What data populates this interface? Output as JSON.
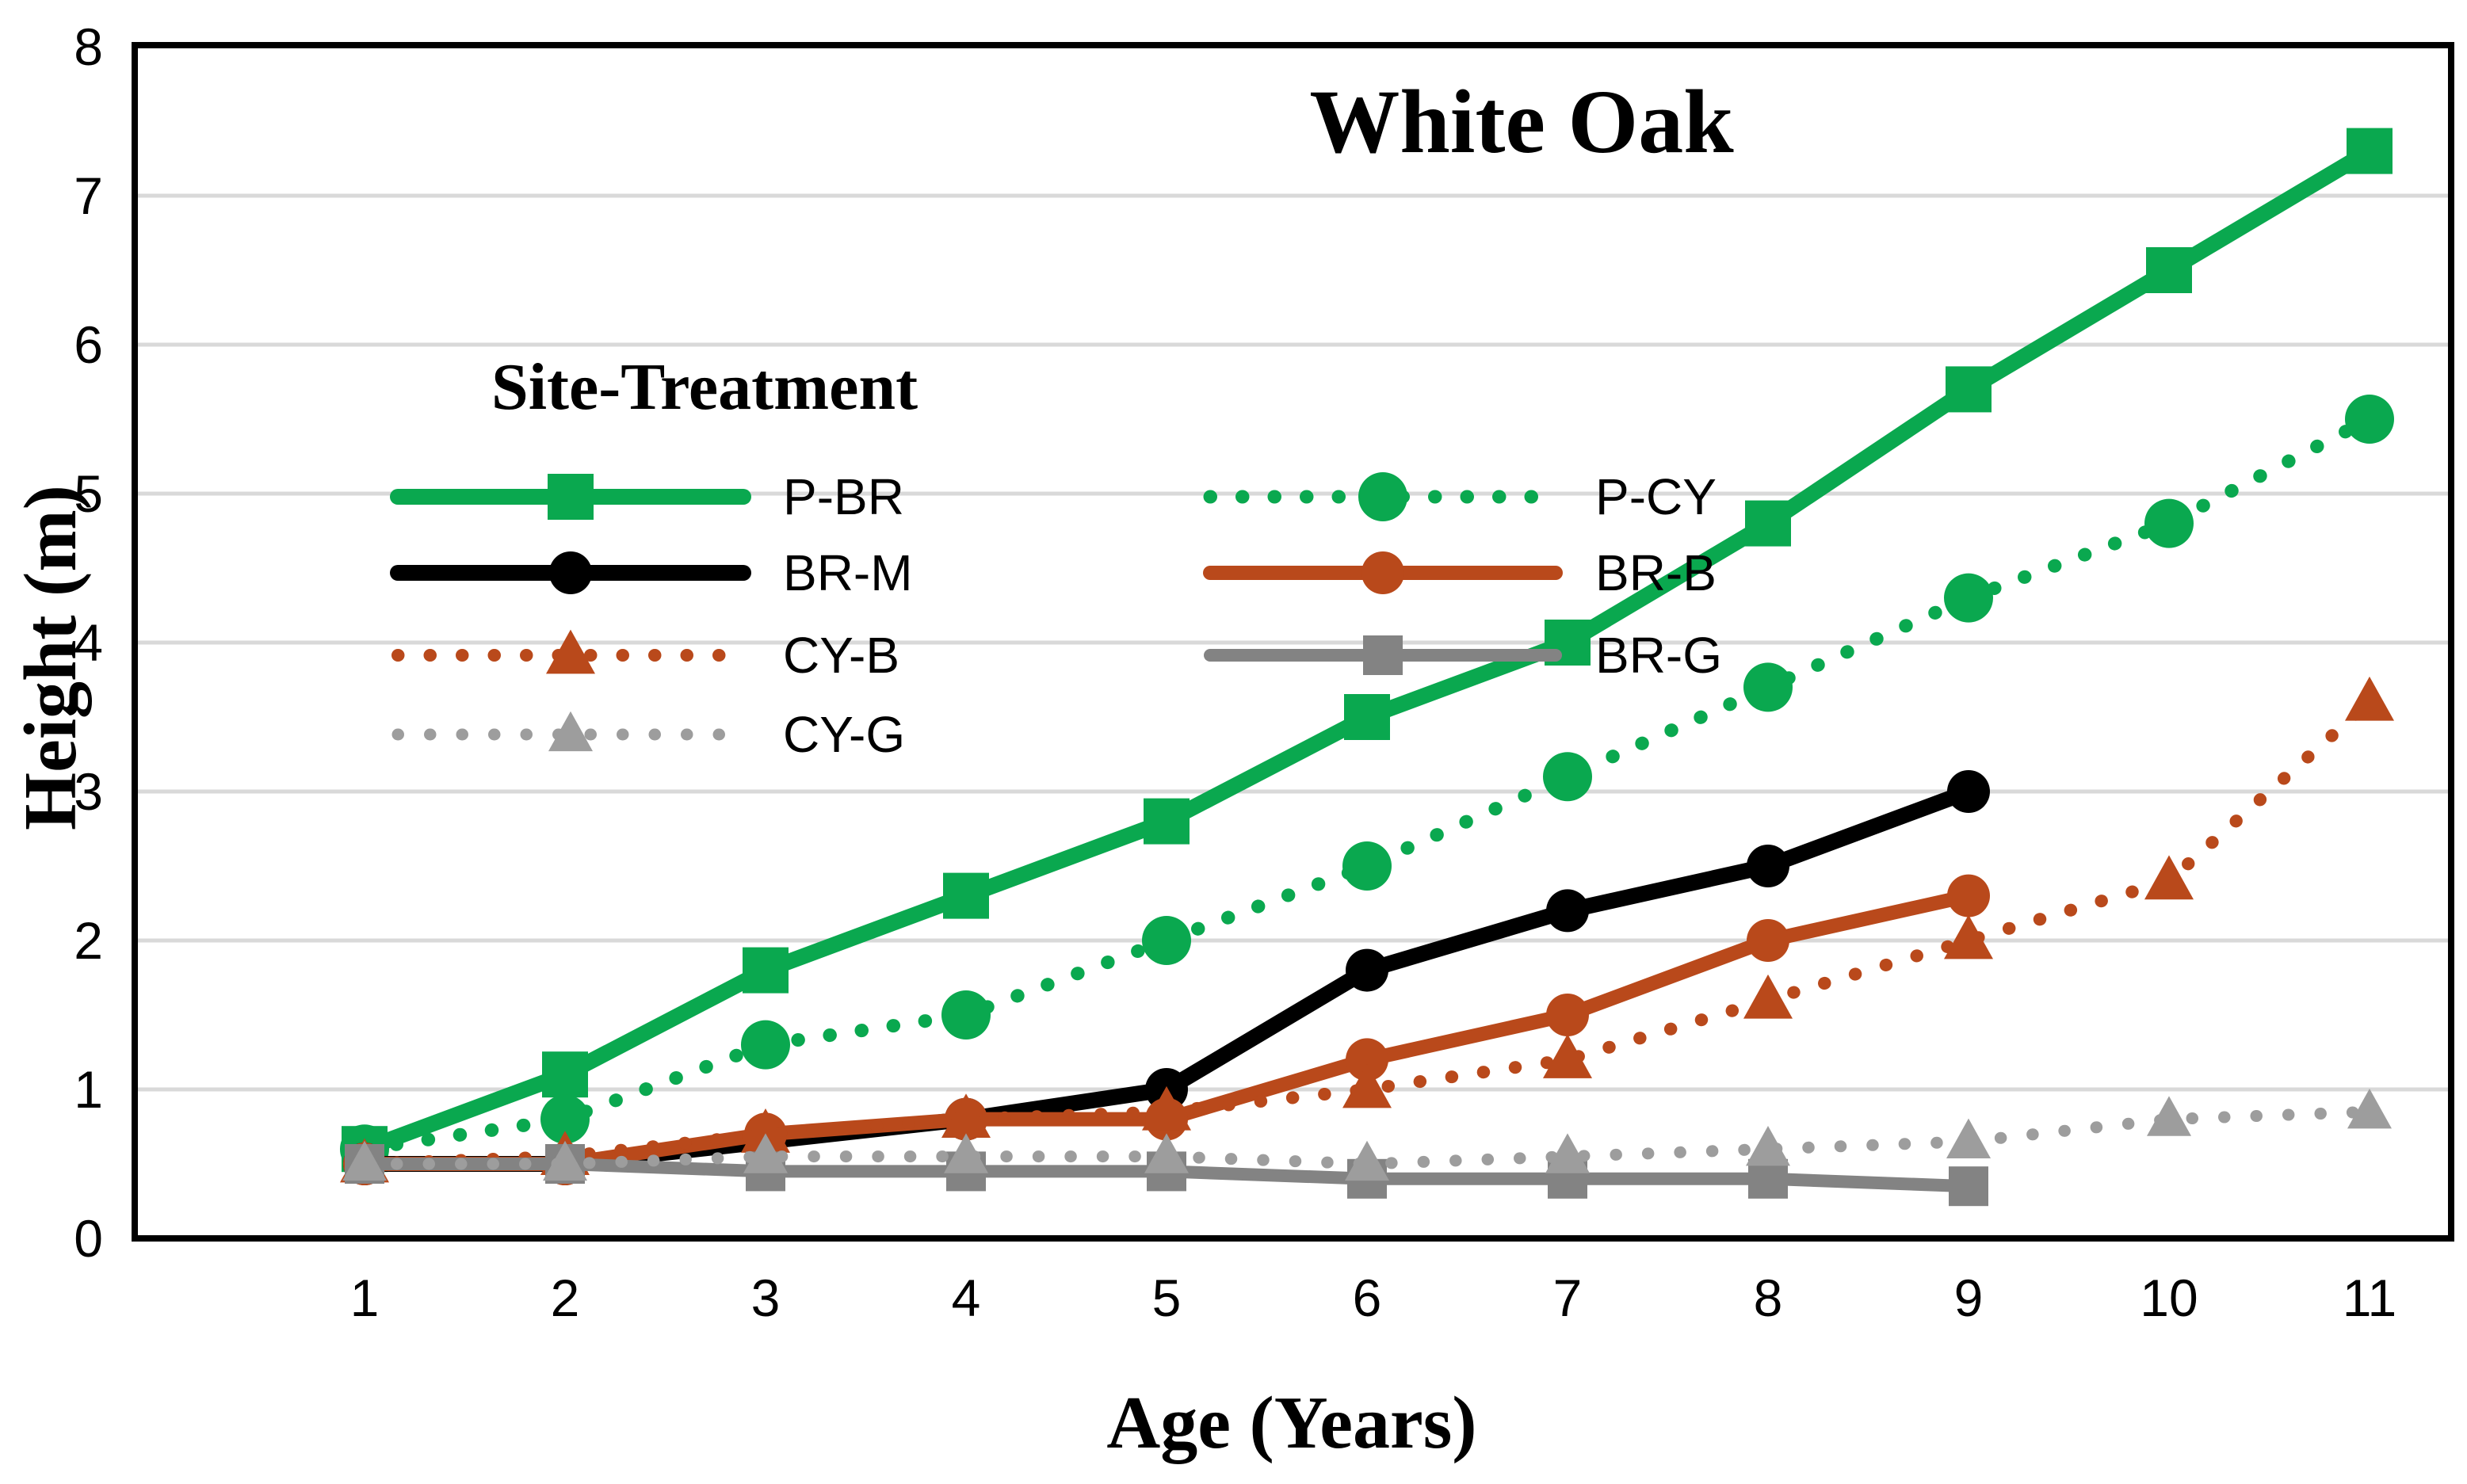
{
  "title": "White Oak",
  "legend": {
    "title": "Site-Treatment"
  },
  "chart_data": {
    "type": "line",
    "title": "White Oak",
    "xlabel": "Age (Years)",
    "ylabel": "Height (m)",
    "ylim": [
      0,
      8
    ],
    "xticks": [
      1,
      2,
      3,
      4,
      5,
      6,
      7,
      8,
      9,
      10,
      11
    ],
    "yticks": [
      0,
      1,
      2,
      3,
      4,
      5,
      6,
      7,
      8
    ],
    "grid": "horizontal",
    "gridline_color": "#d9d9d9",
    "axis_color": "#000000",
    "legend_title": "Site-Treatment",
    "legend_position": "inside-upper-left",
    "series": [
      {
        "name": "P-BR",
        "color": "#0aa84f",
        "line": "solid",
        "marker": "square",
        "ages": [
          1,
          2,
          3,
          4,
          5,
          6,
          7,
          8,
          9,
          10,
          11
        ],
        "values": [
          0.6,
          1.1,
          1.8,
          2.3,
          2.8,
          3.5,
          4.0,
          4.8,
          5.7,
          6.5,
          7.3
        ]
      },
      {
        "name": "P-CY",
        "color": "#0aa84f",
        "line": "dotted",
        "marker": "circle",
        "ages": [
          1,
          2,
          3,
          4,
          5,
          6,
          7,
          8,
          9,
          10,
          11
        ],
        "values": [
          0.6,
          0.8,
          1.3,
          1.5,
          2.0,
          2.5,
          3.1,
          3.7,
          4.3,
          4.8,
          5.5
        ]
      },
      {
        "name": "BR-M",
        "color": "#000000",
        "line": "solid",
        "marker": "circle",
        "ages": [
          1,
          2,
          3,
          4,
          5,
          6,
          7,
          8,
          9
        ],
        "values": [
          0.5,
          0.5,
          0.65,
          0.8,
          1.0,
          1.8,
          2.2,
          2.5,
          3.0
        ]
      },
      {
        "name": "BR-B",
        "color": "#b9491b",
        "line": "solid",
        "marker": "circle",
        "ages": [
          1,
          2,
          3,
          4,
          5,
          6,
          7,
          8,
          9
        ],
        "values": [
          0.5,
          0.5,
          0.7,
          0.8,
          0.8,
          1.2,
          1.5,
          2.0,
          2.3
        ]
      },
      {
        "name": "CY-B",
        "color": "#b9491b",
        "line": "dotted",
        "marker": "triangle",
        "ages": [
          1,
          2,
          3,
          4,
          5,
          6,
          7,
          8,
          9,
          10,
          11
        ],
        "values": [
          0.5,
          0.55,
          0.7,
          0.8,
          0.85,
          1.0,
          1.2,
          1.6,
          2.0,
          2.4,
          3.6
        ]
      },
      {
        "name": "BR-G",
        "color": "#838383",
        "line": "solid",
        "marker": "square",
        "ages": [
          1,
          2,
          3,
          4,
          5,
          6,
          7,
          8,
          9
        ],
        "values": [
          0.5,
          0.5,
          0.45,
          0.45,
          0.45,
          0.4,
          0.4,
          0.4,
          0.35
        ]
      },
      {
        "name": "CY-G",
        "color": "#9d9d9d",
        "line": "dotted",
        "marker": "triangle",
        "ages": [
          1,
          2,
          3,
          4,
          5,
          6,
          7,
          8,
          9,
          10,
          11
        ],
        "values": [
          0.5,
          0.5,
          0.55,
          0.55,
          0.55,
          0.5,
          0.55,
          0.6,
          0.65,
          0.8,
          0.85
        ]
      }
    ]
  }
}
